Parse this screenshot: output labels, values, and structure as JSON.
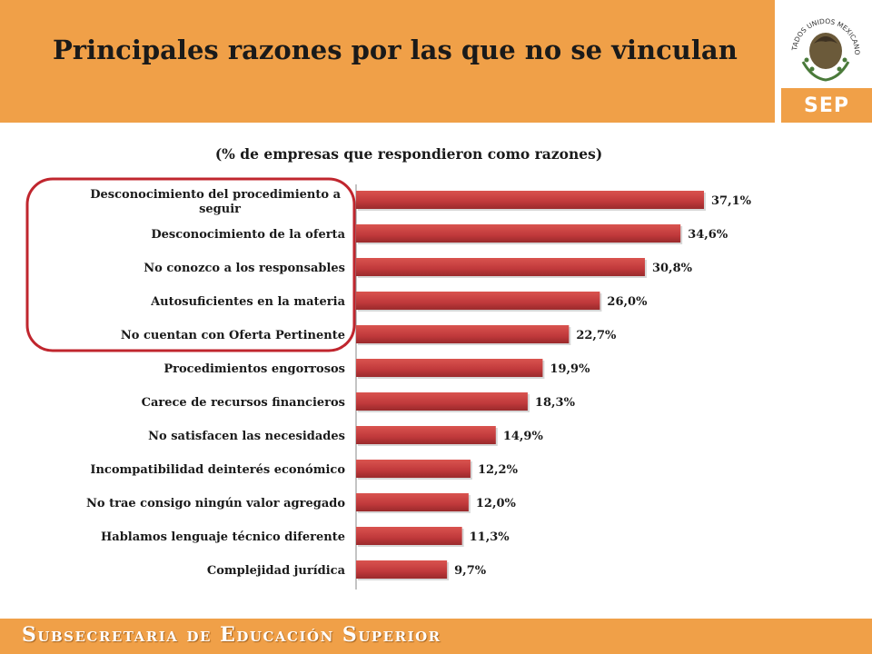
{
  "header": {
    "title": "Principales razones por las que no se vinculan",
    "logo_text": "SEP",
    "seal_text": "ESTADOS UNIDOS MEXICANOS"
  },
  "footer": {
    "text": "Subsecretaria de Educación Superior"
  },
  "colors": {
    "orange": "#f0a048",
    "bar": "#c0393b",
    "highlight": "#c0262e"
  },
  "chart_data": {
    "type": "bar",
    "orientation": "horizontal",
    "title": "(% de empresas que respondieron como razones)",
    "categories": [
      "Desconocimiento del procedimiento a seguir",
      "Desconocimiento de la oferta",
      "No conozco a los responsables",
      "Autosuficientes en la materia",
      "No cuentan con Oferta Pertinente",
      "Procedimientos engorrosos",
      "Carece de recursos financieros",
      "No satisfacen las necesidades",
      "Incompatibilidad deinterés económico",
      "No trae consigo ningún valor agregado",
      "Hablamos lenguaje técnico diferente",
      "Complejidad jurídica"
    ],
    "values": [
      37.1,
      34.6,
      30.8,
      26.0,
      22.7,
      19.9,
      18.3,
      14.9,
      12.2,
      12.0,
      11.3,
      9.7
    ],
    "value_labels": [
      "37,1%",
      "34,6%",
      "30,8%",
      "26,0%",
      "22,7%",
      "19,9%",
      "18,3%",
      "14,9%",
      "12,2%",
      "12,0%",
      "11,3%",
      "9,7%"
    ],
    "xlim": [
      0,
      37.1
    ],
    "grid": false,
    "highlighted_categories": [
      0,
      1,
      2,
      3,
      4
    ]
  }
}
